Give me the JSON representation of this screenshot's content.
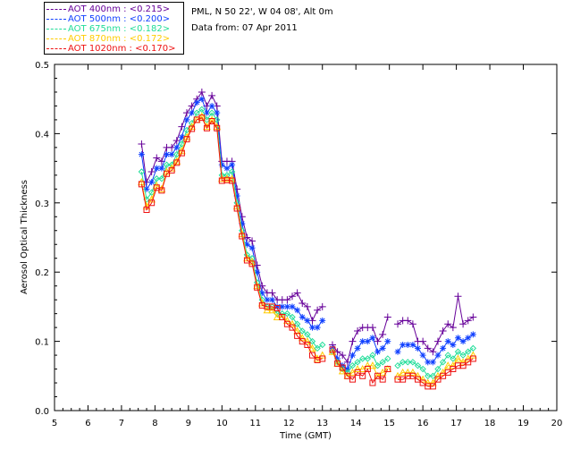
{
  "header": {
    "site": "PML, N 50 22', W 04 08', Alt 0m",
    "date": "Data from: 07 Apr 2011"
  },
  "legend": [
    {
      "label": "AOT  400nm : <0.215>",
      "color": "#660099"
    },
    {
      "label": "AOT  500nm : <0.200>",
      "color": "#1040ff"
    },
    {
      "label": "AOT  675nm : <0.182>",
      "color": "#22dd99"
    },
    {
      "label": "AOT  870nm : <0.172>",
      "color": "#ffcc00"
    },
    {
      "label": "AOT 1020nm : <0.170>",
      "color": "#ee1111"
    }
  ],
  "chart_data": {
    "type": "line",
    "xlabel": "Time (GMT)",
    "ylabel": "Aerosol Optical Thickness",
    "xlim": [
      5,
      20
    ],
    "ylim": [
      0.0,
      0.5
    ],
    "xticks": [
      5,
      6,
      7,
      8,
      9,
      10,
      11,
      12,
      13,
      14,
      15,
      16,
      17,
      18,
      19,
      20
    ],
    "yticks": [
      "0.0",
      "0.1",
      "0.2",
      "0.3",
      "0.4",
      "0.5"
    ],
    "x": [
      7.6,
      7.75,
      7.9,
      8.05,
      8.2,
      8.35,
      8.5,
      8.65,
      8.8,
      8.95,
      9.1,
      9.25,
      9.4,
      9.55,
      9.7,
      9.85,
      10.0,
      10.15,
      10.3,
      10.45,
      10.6,
      10.75,
      10.9,
      11.05,
      11.2,
      11.35,
      11.5,
      11.65,
      11.8,
      11.95,
      12.1,
      12.25,
      12.4,
      12.55,
      12.7,
      12.85,
      13.0,
      13.15,
      13.3,
      13.45,
      13.6,
      13.75,
      13.9,
      14.05,
      14.2,
      14.35,
      14.5,
      14.65,
      14.8,
      14.95,
      15.1,
      15.25,
      15.4,
      15.55,
      15.7,
      15.85,
      16.0,
      16.15,
      16.3,
      16.45,
      16.6,
      16.75,
      16.9,
      17.05,
      17.2,
      17.35,
      17.5
    ],
    "series": [
      {
        "name": "AOT  400nm",
        "color": "#660099",
        "marker": "plus",
        "values": [
          0.385,
          0.33,
          0.345,
          0.365,
          0.36,
          0.38,
          0.38,
          0.39,
          0.41,
          0.43,
          0.44,
          0.45,
          0.46,
          0.44,
          0.455,
          0.44,
          0.36,
          0.36,
          0.36,
          0.32,
          0.28,
          0.25,
          0.245,
          0.21,
          0.18,
          0.17,
          0.17,
          0.16,
          0.16,
          0.16,
          0.165,
          0.17,
          0.155,
          0.15,
          0.13,
          0.145,
          0.15,
          null,
          0.095,
          0.085,
          0.08,
          0.07,
          0.1,
          0.115,
          0.12,
          0.12,
          0.12,
          0.1,
          0.11,
          0.135,
          null,
          0.125,
          0.13,
          0.13,
          0.125,
          0.1,
          0.1,
          0.09,
          0.085,
          0.1,
          0.115,
          0.125,
          0.12,
          0.165,
          0.125,
          0.13,
          0.135
        ]
      },
      {
        "name": "AOT  500nm",
        "color": "#1040ff",
        "marker": "star",
        "values": [
          0.37,
          0.32,
          0.33,
          0.35,
          0.35,
          0.37,
          0.37,
          0.38,
          0.395,
          0.42,
          0.43,
          0.445,
          0.45,
          0.43,
          0.44,
          0.43,
          0.355,
          0.35,
          0.355,
          0.31,
          0.27,
          0.24,
          0.235,
          0.2,
          0.17,
          0.16,
          0.16,
          0.15,
          0.15,
          0.15,
          0.15,
          0.145,
          0.135,
          0.13,
          0.12,
          0.12,
          0.13,
          null,
          0.09,
          0.075,
          0.065,
          0.06,
          0.08,
          0.09,
          0.1,
          0.1,
          0.105,
          0.085,
          0.09,
          0.1,
          null,
          0.085,
          0.095,
          0.095,
          0.095,
          0.09,
          0.08,
          0.07,
          0.07,
          0.08,
          0.09,
          0.1,
          0.095,
          0.105,
          0.1,
          0.105,
          0.11
        ]
      },
      {
        "name": "AOT  675nm",
        "color": "#22dd99",
        "marker": "diamond",
        "values": [
          0.345,
          0.305,
          0.315,
          0.335,
          0.335,
          0.355,
          0.355,
          0.37,
          0.385,
          0.405,
          0.415,
          0.43,
          0.435,
          0.42,
          0.43,
          0.42,
          0.34,
          0.34,
          0.345,
          0.3,
          0.26,
          0.225,
          0.22,
          0.185,
          0.16,
          0.15,
          0.15,
          0.14,
          0.14,
          0.14,
          0.135,
          0.125,
          0.115,
          0.11,
          0.1,
          0.09,
          0.095,
          null,
          0.085,
          0.07,
          0.06,
          0.055,
          0.065,
          0.07,
          0.075,
          0.075,
          0.08,
          0.065,
          0.07,
          0.075,
          null,
          0.065,
          0.07,
          0.07,
          0.07,
          0.065,
          0.06,
          0.05,
          0.05,
          0.06,
          0.07,
          0.08,
          0.075,
          0.085,
          0.08,
          0.085,
          0.09
        ]
      },
      {
        "name": "AOT  870nm",
        "color": "#ffcc00",
        "marker": "triangle",
        "values": [
          0.33,
          0.295,
          0.305,
          0.325,
          0.32,
          0.345,
          0.35,
          0.36,
          0.375,
          0.395,
          0.41,
          0.42,
          0.425,
          0.41,
          0.42,
          0.41,
          0.335,
          0.335,
          0.335,
          0.295,
          0.255,
          0.22,
          0.215,
          0.18,
          0.155,
          0.145,
          0.145,
          0.135,
          0.135,
          0.13,
          0.125,
          0.115,
          0.105,
          0.1,
          0.09,
          0.075,
          0.08,
          null,
          0.085,
          0.068,
          0.057,
          0.05,
          0.055,
          0.06,
          0.06,
          0.065,
          0.065,
          0.05,
          0.055,
          0.06,
          null,
          0.05,
          0.055,
          0.055,
          0.055,
          0.05,
          0.045,
          0.04,
          0.04,
          0.05,
          0.055,
          0.065,
          0.065,
          0.075,
          0.07,
          0.075,
          0.08
        ]
      },
      {
        "name": "AOT 1020nm",
        "color": "#ee1111",
        "marker": "square",
        "values": [
          0.327,
          0.29,
          0.3,
          0.322,
          0.318,
          0.342,
          0.347,
          0.358,
          0.372,
          0.392,
          0.407,
          0.42,
          0.423,
          0.408,
          0.418,
          0.408,
          0.332,
          0.333,
          0.332,
          0.292,
          0.252,
          0.217,
          0.212,
          0.178,
          0.152,
          0.15,
          0.15,
          0.148,
          0.135,
          0.125,
          0.12,
          0.108,
          0.1,
          0.095,
          0.08,
          0.073,
          0.075,
          null,
          0.088,
          0.068,
          0.062,
          0.05,
          0.045,
          0.055,
          0.05,
          0.06,
          0.04,
          0.05,
          0.045,
          0.06,
          null,
          0.045,
          0.045,
          0.05,
          0.05,
          0.045,
          0.04,
          0.035,
          0.035,
          0.045,
          0.05,
          0.055,
          0.06,
          0.065,
          0.065,
          0.07,
          0.075
        ]
      }
    ]
  }
}
